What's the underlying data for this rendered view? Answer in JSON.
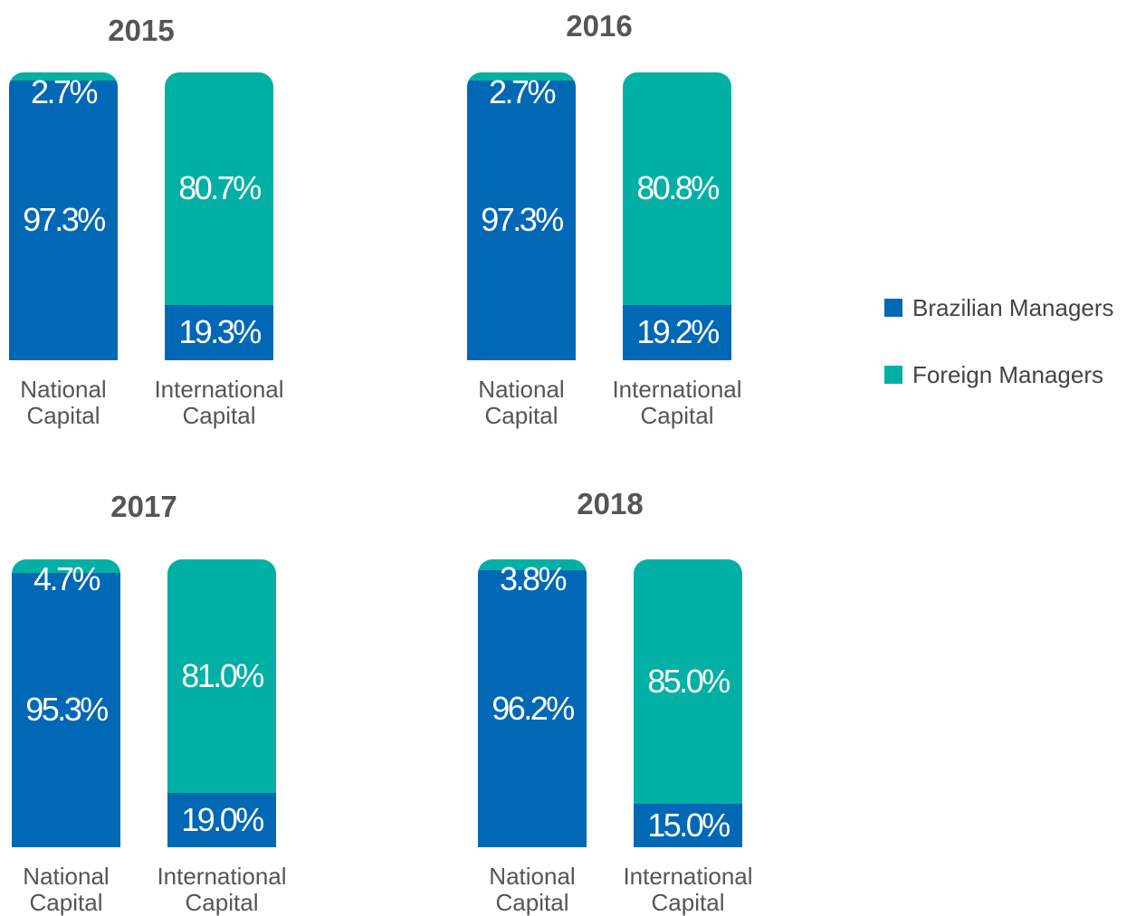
{
  "chart_data": [
    {
      "type": "bar",
      "stacked": true,
      "title": "2015",
      "categories": [
        "National Capital",
        "International Capital"
      ],
      "ylim": [
        0,
        100
      ],
      "series": [
        {
          "name": "Brazilian Managers",
          "color": "#0068b4",
          "values": [
            97.3,
            19.3
          ],
          "value_labels": [
            "97.3%",
            "19.3%"
          ]
        },
        {
          "name": "Foreign Managers",
          "color": "#00b0a4",
          "values": [
            2.7,
            80.7
          ],
          "value_labels": [
            "2.7%",
            "80.7%"
          ]
        }
      ]
    },
    {
      "type": "bar",
      "stacked": true,
      "title": "2016",
      "categories": [
        "National Capital",
        "International Capital"
      ],
      "ylim": [
        0,
        100
      ],
      "series": [
        {
          "name": "Brazilian Managers",
          "color": "#0068b4",
          "values": [
            97.3,
            19.2
          ],
          "value_labels": [
            "97.3%",
            "19.2%"
          ]
        },
        {
          "name": "Foreign Managers",
          "color": "#00b0a4",
          "values": [
            2.7,
            80.8
          ],
          "value_labels": [
            "2.7%",
            "80.8%"
          ]
        }
      ]
    },
    {
      "type": "bar",
      "stacked": true,
      "title": "2017",
      "categories": [
        "National Capital",
        "International Capital"
      ],
      "ylim": [
        0,
        100
      ],
      "series": [
        {
          "name": "Brazilian Managers",
          "color": "#0068b4",
          "values": [
            95.3,
            19.0
          ],
          "value_labels": [
            "95.3%",
            "19.0%"
          ]
        },
        {
          "name": "Foreign Managers",
          "color": "#00b0a4",
          "values": [
            4.7,
            81.0
          ],
          "value_labels": [
            "4.7%",
            "81.0%"
          ]
        }
      ]
    },
    {
      "type": "bar",
      "stacked": true,
      "title": "2018",
      "categories": [
        "National Capital",
        "International Capital"
      ],
      "ylim": [
        0,
        100
      ],
      "series": [
        {
          "name": "Brazilian Managers",
          "color": "#0068b4",
          "values": [
            96.2,
            15.0
          ],
          "value_labels": [
            "96.2%",
            "15.0%"
          ]
        },
        {
          "name": "Foreign Managers",
          "color": "#00b0a4",
          "values": [
            3.8,
            85.0
          ],
          "value_labels": [
            "3.8%",
            "85.0%"
          ]
        }
      ]
    }
  ]
}
